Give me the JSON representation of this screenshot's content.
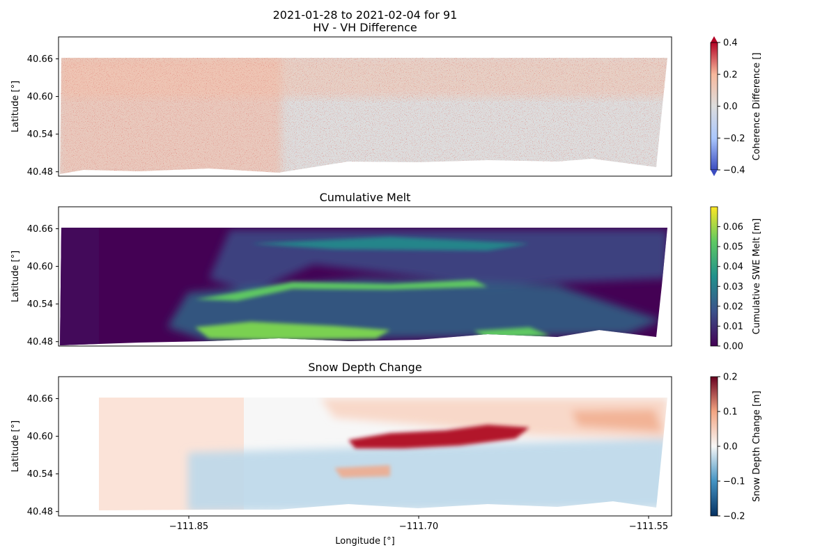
{
  "figure": {
    "suptitle_line1": "2021-01-28 to 2021-02-04 for 91"
  },
  "chart_data": [
    {
      "type": "heatmap",
      "title": "HV - VH Difference",
      "ylabel": "Latitude [°]",
      "xlabel": "",
      "xlim": [
        -111.935,
        -111.535
      ],
      "ylim": [
        40.473,
        40.695
      ],
      "yticks": [
        40.48,
        40.54,
        40.6,
        40.66
      ],
      "ytick_labels": [
        "40.48",
        "40.54",
        "40.60",
        "40.66"
      ],
      "xticks": [],
      "colormap": "coolwarm",
      "colorbar": {
        "label": "Coherence Difference []",
        "range": [
          -0.4,
          0.4
        ],
        "ticks": [
          -0.4,
          -0.2,
          0.0,
          0.2,
          0.4
        ],
        "tick_labels": [
          "−0.4",
          "−0.2",
          "0.0",
          "0.2",
          "0.4"
        ],
        "extend": "both",
        "colors": [
          "#3b4cc0",
          "#aac7fd",
          "#dddddd",
          "#f7b89c",
          "#b40426"
        ]
      },
      "regions": [
        {
          "name": "background",
          "value": 0.0
        },
        {
          "name": "western-positive-speckle",
          "value": 0.15
        },
        {
          "name": "northern-positive-band",
          "value": 0.1
        },
        {
          "name": "northeast-negative-patches",
          "value": -0.1
        }
      ]
    },
    {
      "type": "heatmap",
      "title": "Cumulative Melt",
      "ylabel": "Latitude [°]",
      "xlabel": "",
      "xlim": [
        -111.935,
        -111.535
      ],
      "ylim": [
        40.473,
        40.695
      ],
      "yticks": [
        40.48,
        40.54,
        40.6,
        40.66
      ],
      "ytick_labels": [
        "40.48",
        "40.54",
        "40.60",
        "40.66"
      ],
      "xticks": [],
      "colormap": "viridis",
      "colorbar": {
        "label": "Cumulative SWE Melt [m]",
        "range": [
          0.0,
          0.07
        ],
        "ticks": [
          0.0,
          0.01,
          0.02,
          0.03,
          0.04,
          0.05,
          0.06
        ],
        "tick_labels": [
          "0.00",
          "0.01",
          "0.02",
          "0.03",
          "0.04",
          "0.05",
          "0.06"
        ],
        "extend": "neither",
        "colors": [
          "#440154",
          "#3b528b",
          "#21918c",
          "#5ec962",
          "#fde725"
        ]
      },
      "regions": [
        {
          "name": "background",
          "value": 0.0
        },
        {
          "name": "central-ridge-band",
          "value": 0.05
        },
        {
          "name": "southern-band",
          "value": 0.06
        },
        {
          "name": "northern-ridges",
          "value": 0.03
        }
      ]
    },
    {
      "type": "heatmap",
      "title": "Snow Depth Change",
      "ylabel": "Latitude [°]",
      "xlabel": "Longitude [°]",
      "xlim": [
        -111.935,
        -111.535
      ],
      "ylim": [
        40.473,
        40.695
      ],
      "yticks": [
        40.48,
        40.54,
        40.6,
        40.66
      ],
      "ytick_labels": [
        "40.48",
        "40.54",
        "40.60",
        "40.66"
      ],
      "xticks": [
        -111.85,
        -111.7,
        -111.55
      ],
      "xtick_labels": [
        "−111.85",
        "−111.70",
        "−111.55"
      ],
      "colormap": "RdBu_r",
      "colorbar": {
        "label": "Snow Depth Change [m]",
        "range": [
          -0.2,
          0.2
        ],
        "ticks": [
          -0.2,
          -0.1,
          0.0,
          0.1,
          0.2
        ],
        "tick_labels": [
          "−0.2",
          "−0.1",
          "0.0",
          "0.1",
          "0.2"
        ],
        "extend": "neither",
        "colors": [
          "#053061",
          "#4393c3",
          "#f7f7f7",
          "#f4a582",
          "#67001f"
        ]
      },
      "regions": [
        {
          "name": "western-slight-positive",
          "value": 0.03
        },
        {
          "name": "central-negative",
          "value": -0.05
        },
        {
          "name": "ridge-strong-positive",
          "value": 0.18
        },
        {
          "name": "northeast-positive",
          "value": 0.08
        }
      ]
    }
  ]
}
